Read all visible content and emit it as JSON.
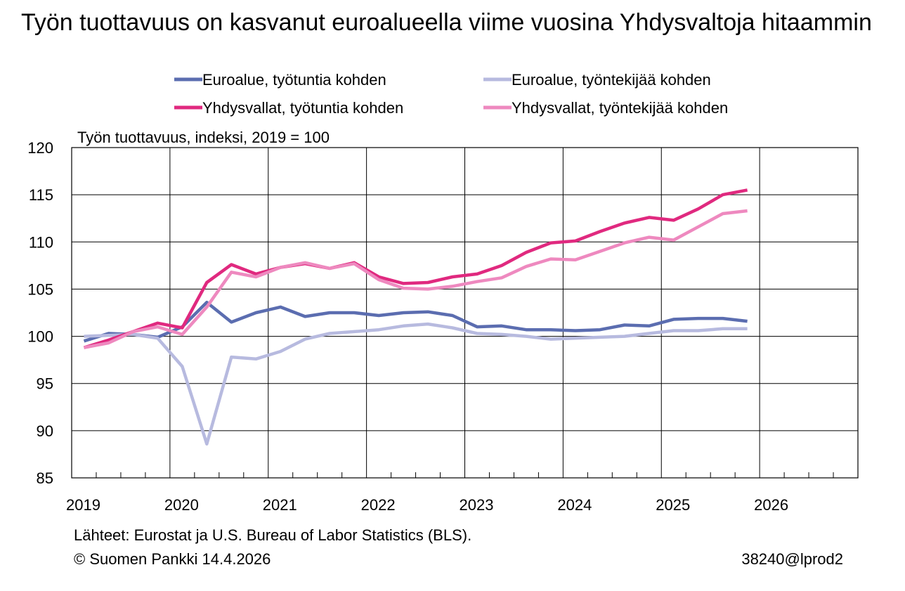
{
  "title": "Työn tuottavuus on kasvanut euroalueella viime vuosina Yhdysvaltoja hitaammin",
  "footer": {
    "source": "Lähteet: Eurostat ja U.S. Bureau of Labor Statistics (BLS).",
    "copyright": "© Suomen Pankki 14.4.2026",
    "code": "38240@lprod2"
  },
  "chart_data": {
    "type": "line",
    "ylabel": "Työn tuottavuus, indeksi, 2019 = 100",
    "xlabel": "",
    "ylim": [
      85,
      120
    ],
    "yticks": [
      85,
      90,
      95,
      100,
      105,
      110,
      115,
      120
    ],
    "xlim": [
      2019,
      2027
    ],
    "year_labels": [
      "2019",
      "2020",
      "2021",
      "2022",
      "2023",
      "2024",
      "2025",
      "2026"
    ],
    "grid": true,
    "legend_position": "top",
    "x": [
      "2019Q1",
      "2019Q2",
      "2019Q3",
      "2019Q4",
      "2020Q1",
      "2020Q2",
      "2020Q3",
      "2020Q4",
      "2021Q1",
      "2021Q2",
      "2021Q3",
      "2021Q4",
      "2022Q1",
      "2022Q2",
      "2022Q3",
      "2022Q4",
      "2023Q1",
      "2023Q2",
      "2023Q3",
      "2023Q4",
      "2024Q1",
      "2024Q2",
      "2024Q3",
      "2024Q4",
      "2025Q1",
      "2025Q2",
      "2025Q3",
      "2025Q4"
    ],
    "series": [
      {
        "name": "Euroalue, työtuntia kohden",
        "color": "#5b6db0",
        "values": [
          99.5,
          100.3,
          100.2,
          99.9,
          101.0,
          103.6,
          101.5,
          102.5,
          103.1,
          102.1,
          102.5,
          102.5,
          102.2,
          102.5,
          102.6,
          102.2,
          101.0,
          101.1,
          100.7,
          100.7,
          100.6,
          100.7,
          101.2,
          101.1,
          101.8,
          101.9,
          101.9,
          101.6
        ]
      },
      {
        "name": "Euroalue, työntekijää kohden",
        "color": "#b7badf",
        "values": [
          100.0,
          100.1,
          100.2,
          99.8,
          96.8,
          88.6,
          97.8,
          97.6,
          98.4,
          99.7,
          100.3,
          100.5,
          100.7,
          101.1,
          101.3,
          100.9,
          100.3,
          100.2,
          100.0,
          99.7,
          99.8,
          99.9,
          100.0,
          100.3,
          100.6,
          100.6,
          100.8,
          100.8
        ]
      },
      {
        "name": "Yhdysvallat, työtuntia kohden",
        "color": "#e0297f",
        "values": [
          98.8,
          99.6,
          100.5,
          101.4,
          100.9,
          105.7,
          107.6,
          106.6,
          107.3,
          107.7,
          107.2,
          107.8,
          106.3,
          105.6,
          105.7,
          106.3,
          106.6,
          107.5,
          108.9,
          109.9,
          110.1,
          111.1,
          112.0,
          112.6,
          112.3,
          113.5,
          115.0,
          115.5
        ]
      },
      {
        "name": "Yhdysvallat, työntekijää kohden",
        "color": "#ee89bf",
        "values": [
          98.8,
          99.3,
          100.5,
          101.0,
          100.2,
          103.1,
          106.8,
          106.3,
          107.3,
          107.8,
          107.2,
          107.7,
          106.0,
          105.1,
          105.0,
          105.3,
          105.8,
          106.2,
          107.4,
          108.2,
          108.1,
          109.0,
          109.9,
          110.5,
          110.2,
          111.6,
          113.0,
          113.3
        ]
      }
    ]
  }
}
